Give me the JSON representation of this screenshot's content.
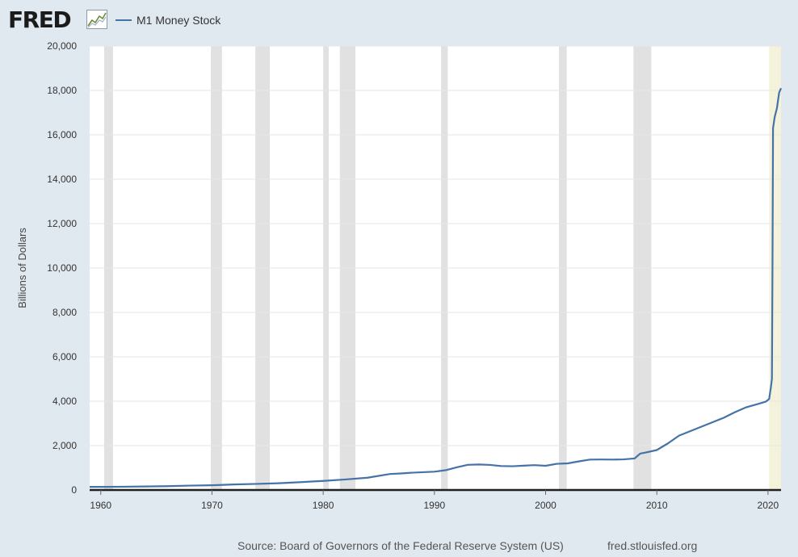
{
  "logo": {
    "text": "FRED",
    "icon": "graph-line-icon"
  },
  "legend": {
    "label": "M1 Money Stock",
    "color": "#4572a7"
  },
  "footer": {
    "source": "Source: Board of Governors of the Federal Reserve System (US)",
    "url": "fred.stlouisfed.org"
  },
  "colors": {
    "background": "#e1e9f0",
    "plot_background": "#ffffff",
    "series": "#4572a7",
    "recession": "#e1e1e1",
    "recession_current": "#f5f2dc",
    "gridline": "#e6e6e6",
    "axis_line": "#1f1f1f"
  },
  "chart_data": {
    "type": "line",
    "title": "",
    "xlabel": "",
    "ylabel": "Billions of Dollars",
    "xlim": [
      1959.0,
      2021.17
    ],
    "ylim": [
      0,
      20000
    ],
    "x_ticks": [
      1960,
      1970,
      1980,
      1990,
      2000,
      2010,
      2020
    ],
    "x_tick_labels": [
      "1960",
      "1970",
      "1980",
      "1990",
      "2000",
      "2010",
      "2020"
    ],
    "y_ticks": [
      0,
      2000,
      4000,
      6000,
      8000,
      10000,
      12000,
      14000,
      16000,
      18000,
      20000
    ],
    "y_tick_labels": [
      "0",
      "2,000",
      "4,000",
      "6,000",
      "8,000",
      "10,000",
      "12,000",
      "14,000",
      "16,000",
      "18,000",
      "20,000"
    ],
    "grid": true,
    "legend_position": "top-left",
    "recessions": [
      [
        1960.3,
        1961.1
      ],
      [
        1969.9,
        1970.9
      ],
      [
        1973.9,
        1975.2
      ],
      [
        1980.0,
        1980.5
      ],
      [
        1981.5,
        1982.9
      ],
      [
        1990.6,
        1991.2
      ],
      [
        2001.2,
        2001.9
      ],
      [
        2007.9,
        2009.5
      ],
      [
        2020.1,
        2021.17
      ]
    ],
    "series": [
      {
        "name": "M1 Money Stock",
        "x": [
          1959.0,
          1960.0,
          1962.0,
          1964.0,
          1966.0,
          1968.0,
          1970.0,
          1972.0,
          1974.0,
          1976.0,
          1978.0,
          1980.0,
          1982.0,
          1984.0,
          1986.0,
          1987.0,
          1988.0,
          1990.0,
          1991.0,
          1992.0,
          1993.0,
          1994.0,
          1995.0,
          1996.0,
          1997.0,
          1998.0,
          1999.0,
          2000.0,
          2001.0,
          2002.0,
          2003.0,
          2004.0,
          2005.0,
          2006.0,
          2007.0,
          2008.0,
          2008.5,
          2009.0,
          2010.0,
          2011.0,
          2012.0,
          2013.0,
          2014.0,
          2015.0,
          2016.0,
          2017.0,
          2018.0,
          2019.0,
          2019.8,
          2020.1,
          2020.25,
          2020.35,
          2020.4,
          2020.45,
          2020.6,
          2020.8,
          2021.0,
          2021.17
        ],
        "values": [
          140,
          140,
          147,
          160,
          172,
          197,
          215,
          250,
          275,
          305,
          355,
          410,
          475,
          555,
          720,
          745,
          780,
          825,
          890,
          1020,
          1135,
          1150,
          1130,
          1080,
          1070,
          1095,
          1120,
          1090,
          1180,
          1200,
          1290,
          1370,
          1375,
          1370,
          1380,
          1420,
          1640,
          1690,
          1800,
          2100,
          2450,
          2650,
          2850,
          3050,
          3250,
          3500,
          3720,
          3860,
          3980,
          4100,
          4600,
          5000,
          10000,
          16300,
          16800,
          17200,
          17900,
          18100
        ]
      }
    ]
  }
}
